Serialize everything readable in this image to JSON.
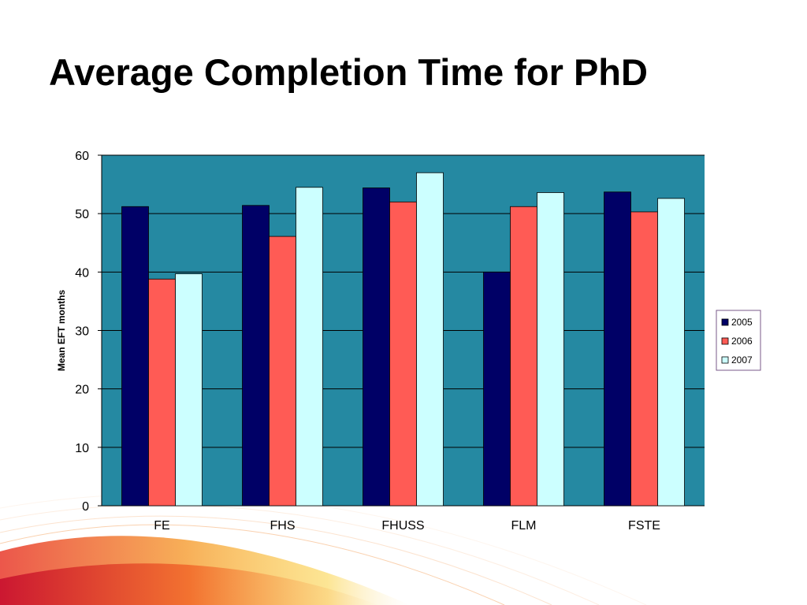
{
  "slide": {
    "title": "Average Completion Time for PhD"
  },
  "colors": {
    "plot_background": "#2589A2",
    "gridline": "#000000",
    "swoosh_red": "#E8392B",
    "swoosh_orange": "#F6A03A",
    "swoosh_yellow": "#FBD44C"
  },
  "chart_data": {
    "type": "bar",
    "title": "",
    "xlabel": "",
    "ylabel": "Mean EFT months",
    "categories": [
      "FE",
      "FHS",
      "FHUSS",
      "FLM",
      "FSTE"
    ],
    "series": [
      {
        "name": "2005",
        "color": "#000066",
        "values": [
          51.2,
          51.4,
          54.4,
          40.0,
          53.7
        ]
      },
      {
        "name": "2006",
        "color": "#FF5B55",
        "values": [
          38.8,
          46.1,
          52.0,
          51.2,
          50.3
        ]
      },
      {
        "name": "2007",
        "color": "#CCFFFF",
        "values": [
          39.7,
          54.5,
          57.0,
          53.6,
          52.6
        ]
      }
    ],
    "ylim": [
      0,
      60
    ],
    "yticks": [
      0,
      10,
      20,
      30,
      40,
      50,
      60
    ],
    "grid": true,
    "legend_position": "right"
  }
}
